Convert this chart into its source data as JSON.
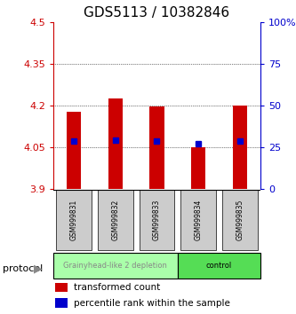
{
  "title": "GDS5113 / 10382846",
  "samples": [
    "GSM999831",
    "GSM999832",
    "GSM999833",
    "GSM999834",
    "GSM999835"
  ],
  "bar_bottom": [
    3.9,
    3.9,
    3.9,
    3.9,
    3.9
  ],
  "bar_top": [
    4.175,
    4.225,
    4.195,
    4.05,
    4.2
  ],
  "percentile_values": [
    4.07,
    4.075,
    4.07,
    4.06,
    4.07
  ],
  "percentile_right": [
    27,
    27,
    27,
    27,
    27
  ],
  "ylim_left": [
    3.9,
    4.5
  ],
  "ylim_right": [
    0,
    100
  ],
  "yticks_left": [
    3.9,
    4.05,
    4.2,
    4.35,
    4.5
  ],
  "ytick_labels_left": [
    "3.9",
    "4.05",
    "4.2",
    "4.35",
    "4.5"
  ],
  "yticks_right": [
    0,
    25,
    50,
    75,
    100
  ],
  "ytick_labels_right": [
    "0",
    "25",
    "50",
    "75",
    "100%"
  ],
  "bar_color": "#cc0000",
  "dot_color": "#0000cc",
  "grid_ticks": [
    4.05,
    4.2,
    4.35
  ],
  "groups": [
    {
      "label": "Grainyhead-like 2 depletion",
      "samples": [
        0,
        1,
        2
      ],
      "color": "#aaffaa",
      "text_color": "#888888"
    },
    {
      "label": "control",
      "samples": [
        3,
        4
      ],
      "color": "#55dd55",
      "text_color": "#000000"
    }
  ],
  "protocol_label": "protocol",
  "legend_items": [
    {
      "color": "#cc0000",
      "label": "transformed count"
    },
    {
      "color": "#0000cc",
      "label": "percentile rank within the sample"
    }
  ],
  "bg_color": "#ffffff",
  "sample_box_color": "#cccccc",
  "title_fontsize": 11,
  "tick_fontsize": 8,
  "legend_fontsize": 7.5
}
